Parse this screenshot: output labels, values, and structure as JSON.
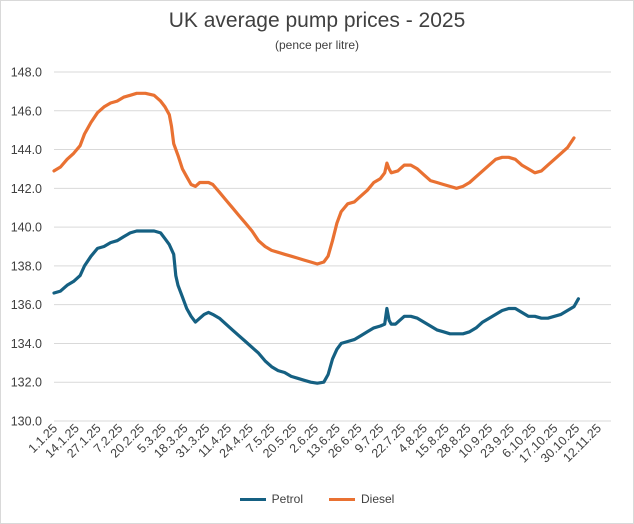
{
  "chart_data": {
    "type": "line",
    "title": "UK average pump prices - 2025",
    "subtitle": "(pence per litre)",
    "xlabel": "",
    "ylabel": "",
    "ylim": [
      130.0,
      148.0
    ],
    "yticks": [
      "130.0",
      "132.0",
      "134.0",
      "136.0",
      "138.0",
      "140.0",
      "142.0",
      "144.0",
      "146.0",
      "148.0"
    ],
    "grid": true,
    "legend_position": "bottom",
    "categories": [
      "1.1.25",
      "14.1.25",
      "27.1.25",
      "7.2.25",
      "20.2.25",
      "5.3.25",
      "18.3.25",
      "31.3.25",
      "11.4.25",
      "24.4.25",
      "7.5.25",
      "20.5.25",
      "2.6.25",
      "13.6.25",
      "26.6.25",
      "9.7.25",
      "22.7.25",
      "4.8.25",
      "15.8.25",
      "28.8.25",
      "10.9.25",
      "23.9.25",
      "6.10.25",
      "17.10.25",
      "30.10.25",
      "12.11.25"
    ],
    "x_range": [
      0,
      25.6
    ],
    "series": [
      {
        "name": "Petrol",
        "color": "#156082",
        "points": [
          [
            0,
            136.6
          ],
          [
            0.3,
            136.7
          ],
          [
            0.6,
            137.0
          ],
          [
            0.9,
            137.2
          ],
          [
            1.2,
            137.5
          ],
          [
            1.4,
            138.0
          ],
          [
            1.7,
            138.5
          ],
          [
            2.0,
            138.9
          ],
          [
            2.3,
            139.0
          ],
          [
            2.6,
            139.2
          ],
          [
            2.9,
            139.3
          ],
          [
            3.2,
            139.5
          ],
          [
            3.5,
            139.7
          ],
          [
            3.8,
            139.8
          ],
          [
            4.2,
            139.8
          ],
          [
            4.6,
            139.8
          ],
          [
            4.9,
            139.7
          ],
          [
            5.1,
            139.4
          ],
          [
            5.3,
            139.1
          ],
          [
            5.5,
            138.6
          ],
          [
            5.6,
            137.5
          ],
          [
            5.7,
            137.0
          ],
          [
            5.9,
            136.4
          ],
          [
            6.1,
            135.8
          ],
          [
            6.3,
            135.4
          ],
          [
            6.5,
            135.1
          ],
          [
            6.7,
            135.3
          ],
          [
            6.9,
            135.5
          ],
          [
            7.1,
            135.6
          ],
          [
            7.3,
            135.5
          ],
          [
            7.6,
            135.3
          ],
          [
            7.9,
            135.0
          ],
          [
            8.2,
            134.7
          ],
          [
            8.5,
            134.4
          ],
          [
            8.8,
            134.1
          ],
          [
            9.1,
            133.8
          ],
          [
            9.4,
            133.5
          ],
          [
            9.7,
            133.1
          ],
          [
            10.0,
            132.8
          ],
          [
            10.3,
            132.6
          ],
          [
            10.6,
            132.5
          ],
          [
            10.9,
            132.3
          ],
          [
            11.2,
            132.2
          ],
          [
            11.5,
            132.1
          ],
          [
            11.8,
            132.0
          ],
          [
            12.1,
            131.95
          ],
          [
            12.4,
            132.0
          ],
          [
            12.6,
            132.4
          ],
          [
            12.8,
            133.2
          ],
          [
            13.0,
            133.7
          ],
          [
            13.2,
            134.0
          ],
          [
            13.5,
            134.1
          ],
          [
            13.8,
            134.2
          ],
          [
            14.1,
            134.4
          ],
          [
            14.4,
            134.6
          ],
          [
            14.7,
            134.8
          ],
          [
            15.0,
            134.9
          ],
          [
            15.2,
            135.0
          ],
          [
            15.3,
            135.8
          ],
          [
            15.4,
            135.2
          ],
          [
            15.5,
            135.0
          ],
          [
            15.7,
            135.0
          ],
          [
            15.9,
            135.2
          ],
          [
            16.1,
            135.4
          ],
          [
            16.4,
            135.4
          ],
          [
            16.7,
            135.3
          ],
          [
            17.0,
            135.1
          ],
          [
            17.3,
            134.9
          ],
          [
            17.6,
            134.7
          ],
          [
            17.9,
            134.6
          ],
          [
            18.2,
            134.5
          ],
          [
            18.5,
            134.5
          ],
          [
            18.8,
            134.5
          ],
          [
            19.1,
            134.6
          ],
          [
            19.4,
            134.8
          ],
          [
            19.7,
            135.1
          ],
          [
            20.0,
            135.3
          ],
          [
            20.3,
            135.5
          ],
          [
            20.6,
            135.7
          ],
          [
            20.9,
            135.8
          ],
          [
            21.2,
            135.8
          ],
          [
            21.5,
            135.6
          ],
          [
            21.8,
            135.4
          ],
          [
            22.1,
            135.4
          ],
          [
            22.4,
            135.3
          ],
          [
            22.7,
            135.3
          ],
          [
            23.0,
            135.4
          ],
          [
            23.3,
            135.5
          ],
          [
            23.6,
            135.7
          ],
          [
            23.9,
            135.9
          ],
          [
            24.1,
            136.3
          ]
        ]
      },
      {
        "name": "Diesel",
        "color": "#e97132",
        "points": [
          [
            0,
            142.9
          ],
          [
            0.3,
            143.1
          ],
          [
            0.6,
            143.5
          ],
          [
            0.9,
            143.8
          ],
          [
            1.2,
            144.2
          ],
          [
            1.4,
            144.8
          ],
          [
            1.7,
            145.4
          ],
          [
            2.0,
            145.9
          ],
          [
            2.3,
            146.2
          ],
          [
            2.6,
            146.4
          ],
          [
            2.9,
            146.5
          ],
          [
            3.2,
            146.7
          ],
          [
            3.5,
            146.8
          ],
          [
            3.8,
            146.9
          ],
          [
            4.2,
            146.9
          ],
          [
            4.6,
            146.8
          ],
          [
            4.9,
            146.5
          ],
          [
            5.1,
            146.2
          ],
          [
            5.3,
            145.8
          ],
          [
            5.4,
            145.2
          ],
          [
            5.5,
            144.3
          ],
          [
            5.7,
            143.7
          ],
          [
            5.9,
            143.0
          ],
          [
            6.1,
            142.6
          ],
          [
            6.3,
            142.2
          ],
          [
            6.5,
            142.1
          ],
          [
            6.7,
            142.3
          ],
          [
            6.9,
            142.3
          ],
          [
            7.1,
            142.3
          ],
          [
            7.3,
            142.2
          ],
          [
            7.6,
            141.8
          ],
          [
            7.9,
            141.4
          ],
          [
            8.2,
            141.0
          ],
          [
            8.5,
            140.6
          ],
          [
            8.8,
            140.2
          ],
          [
            9.1,
            139.8
          ],
          [
            9.4,
            139.3
          ],
          [
            9.7,
            139.0
          ],
          [
            10.0,
            138.8
          ],
          [
            10.3,
            138.7
          ],
          [
            10.6,
            138.6
          ],
          [
            10.9,
            138.5
          ],
          [
            11.2,
            138.4
          ],
          [
            11.5,
            138.3
          ],
          [
            11.8,
            138.2
          ],
          [
            12.1,
            138.1
          ],
          [
            12.4,
            138.2
          ],
          [
            12.6,
            138.5
          ],
          [
            12.8,
            139.3
          ],
          [
            13.0,
            140.2
          ],
          [
            13.2,
            140.8
          ],
          [
            13.5,
            141.2
          ],
          [
            13.8,
            141.3
          ],
          [
            14.1,
            141.6
          ],
          [
            14.4,
            141.9
          ],
          [
            14.7,
            142.3
          ],
          [
            15.0,
            142.5
          ],
          [
            15.2,
            142.8
          ],
          [
            15.3,
            143.3
          ],
          [
            15.4,
            143.0
          ],
          [
            15.5,
            142.8
          ],
          [
            15.8,
            142.9
          ],
          [
            16.1,
            143.2
          ],
          [
            16.4,
            143.2
          ],
          [
            16.7,
            143.0
          ],
          [
            17.0,
            142.7
          ],
          [
            17.3,
            142.4
          ],
          [
            17.6,
            142.3
          ],
          [
            17.9,
            142.2
          ],
          [
            18.2,
            142.1
          ],
          [
            18.5,
            142.0
          ],
          [
            18.8,
            142.1
          ],
          [
            19.1,
            142.3
          ],
          [
            19.4,
            142.6
          ],
          [
            19.7,
            142.9
          ],
          [
            20.0,
            143.2
          ],
          [
            20.3,
            143.5
          ],
          [
            20.6,
            143.6
          ],
          [
            20.9,
            143.6
          ],
          [
            21.2,
            143.5
          ],
          [
            21.5,
            143.2
          ],
          [
            21.8,
            143.0
          ],
          [
            22.1,
            142.8
          ],
          [
            22.4,
            142.9
          ],
          [
            22.7,
            143.2
          ],
          [
            23.0,
            143.5
          ],
          [
            23.3,
            143.8
          ],
          [
            23.6,
            144.1
          ],
          [
            23.9,
            144.6
          ]
        ]
      }
    ]
  }
}
